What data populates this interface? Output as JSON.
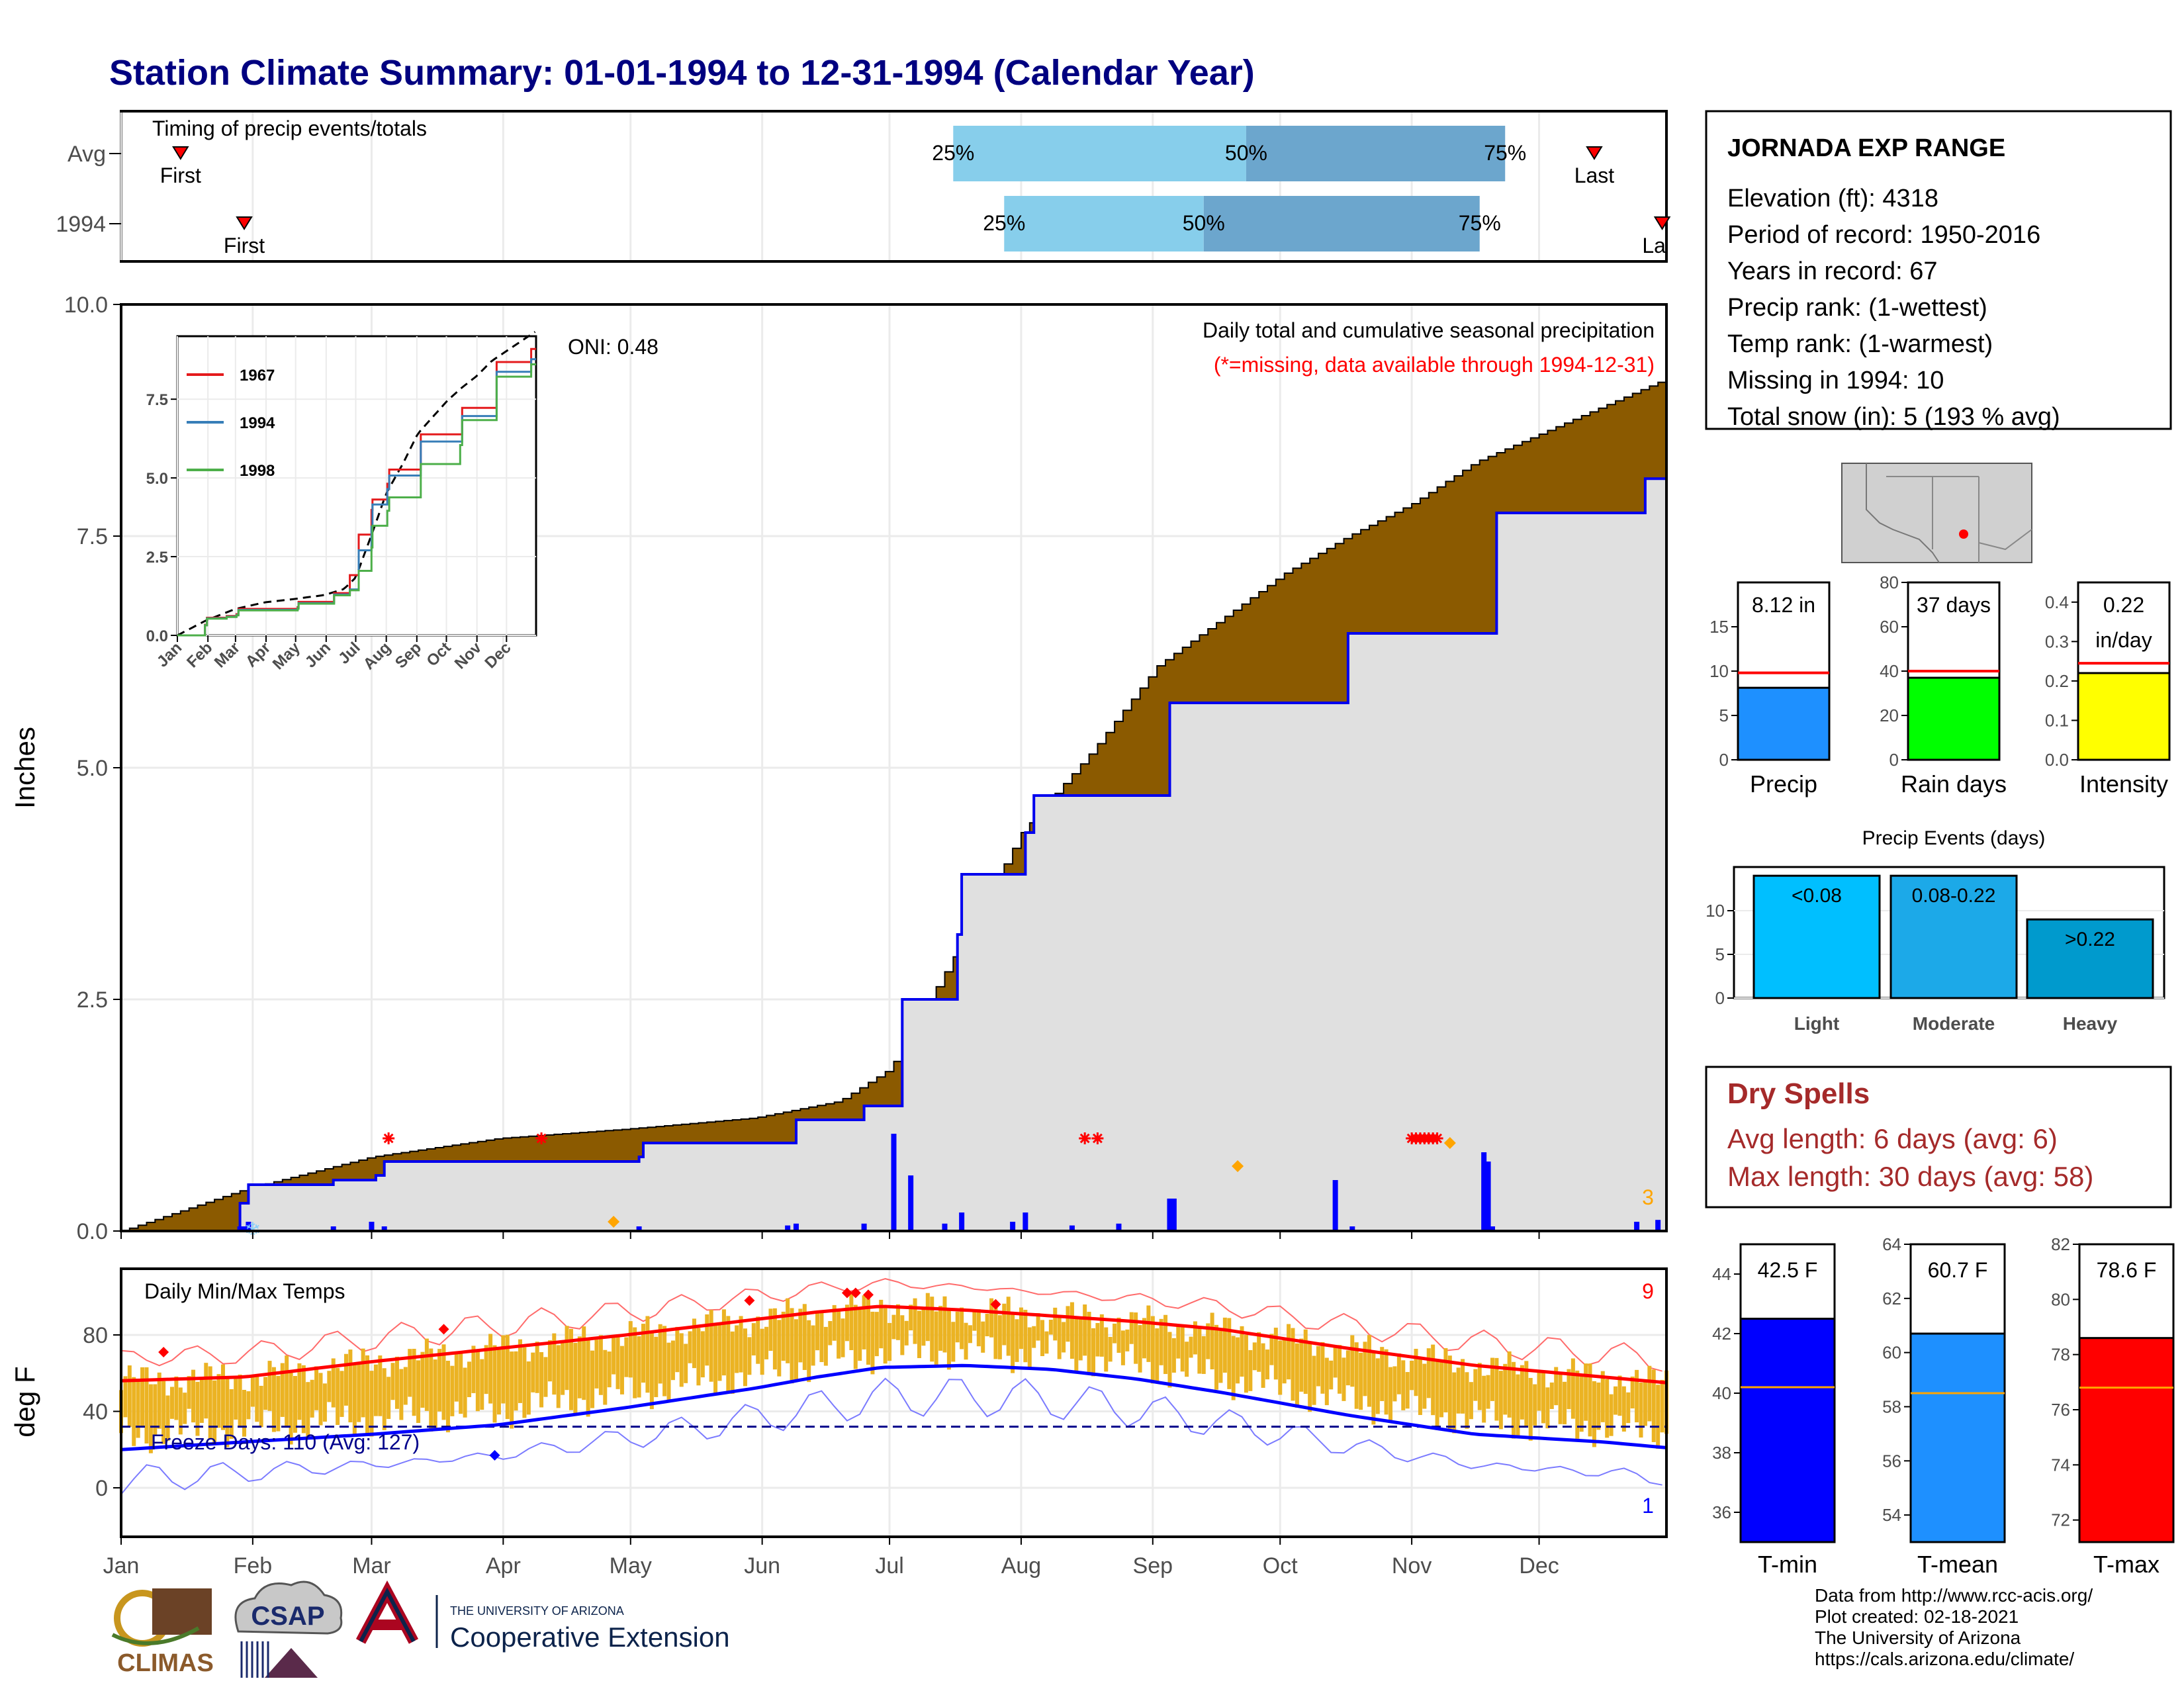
{
  "title": "Station Climate Summary: 01-01-1994 to 12-31-1994 (Calendar Year)",
  "colors": {
    "title": "#000080",
    "accum_fill": "#8B5A00",
    "current_fill": "#E0E0E0",
    "current_line": "#0000EE",
    "temp_bar": "#EBB323",
    "tmax_line": "#FF0000",
    "tmin_line": "#0000FF",
    "dry_spell": "#A52A2A",
    "tercile_light": "#87CEEB",
    "tercile_dark": "#6CA6CD"
  },
  "timing": {
    "label": "Timing of precip events/totals",
    "rows": [
      "Avg",
      "1994"
    ],
    "avg": {
      "first": "First",
      "last": "Last",
      "p25": "25%",
      "p50": "50%",
      "p75": "75%"
    },
    "y1994": {
      "first": "First",
      "last": "Last",
      "p25": "25%",
      "p50": "50%",
      "p75": "75%"
    }
  },
  "precip_panel": {
    "ylabel": "Inches",
    "yticks": [
      "0.0",
      "2.5",
      "5.0",
      "7.5",
      "10.0"
    ],
    "label1": "Daily total and cumulative seasonal precipitation",
    "label2": "(*=missing, data available through 1994-12-31)",
    "oni": "ONI: 0.48",
    "corner_count": "3"
  },
  "inset": {
    "legend": [
      "1967",
      "1994",
      "1998"
    ],
    "yticks": [
      "0.0",
      "2.5",
      "5.0",
      "7.5"
    ],
    "months": [
      "Jan",
      "Feb",
      "Mar",
      "Apr",
      "May",
      "Jun",
      "Jul",
      "Aug",
      "Sep",
      "Oct",
      "Nov",
      "Dec"
    ]
  },
  "temp_panel": {
    "ylabel": "deg F",
    "title": "Daily Min/Max Temps",
    "freeze": "Freeze Days: 110 (Avg: 127)",
    "yticks": [
      "0",
      "40",
      "80"
    ],
    "count_max": "9",
    "count_min": "1"
  },
  "months": [
    "Jan",
    "Feb",
    "Mar",
    "Apr",
    "May",
    "Jun",
    "Jul",
    "Aug",
    "Sep",
    "Oct",
    "Nov",
    "Dec"
  ],
  "station": {
    "name": "JORNADA EXP RANGE",
    "lines": [
      "Elevation (ft): 4318",
      "Period of record: 1950-2016",
      "Years in record: 67",
      "Precip rank:  (1-wettest)",
      "Temp rank:  (1-warmest)",
      "Missing in 1994: 10",
      "Total snow (in): 5 (193 % avg)"
    ]
  },
  "precip_bars": [
    {
      "label": "Precip",
      "value_text": "8.12 in",
      "value": 8.12,
      "avg": 9.8,
      "color": "#1E90FF",
      "ymax": 20,
      "ticks": [
        "0",
        "5",
        "10",
        "15"
      ]
    },
    {
      "label": "Rain days",
      "value_text": "37 days",
      "value": 37,
      "avg": 40,
      "color": "#00FF00",
      "ymax": 80,
      "ticks": [
        "0",
        "20",
        "40",
        "60",
        "80"
      ]
    },
    {
      "label": "Intensity",
      "value_text": "0.22",
      "value_text2": "in/day",
      "value": 0.22,
      "avg": 0.245,
      "color": "#FFFF00",
      "ymax": 0.45,
      "ticks": [
        "0.0",
        "0.1",
        "0.2",
        "0.3",
        "0.4"
      ]
    }
  ],
  "events": {
    "title": "Precip Events (days)",
    "ticks": [
      "0",
      "5",
      "10"
    ],
    "bars": [
      {
        "cat": "Light",
        "label": "<0.08",
        "value": 14,
        "color": "#00BFFF"
      },
      {
        "cat": "Moderate",
        "label": "0.08-0.22",
        "value": 14,
        "color": "#1CA9E8"
      },
      {
        "cat": "Heavy",
        "label": ">0.22",
        "value": 9,
        "color": "#009ACD"
      }
    ]
  },
  "dry_spells": {
    "title": "Dry Spells",
    "avg": "Avg length: 6 days (avg: 6)",
    "max": "Max length: 30 days (avg: 58)"
  },
  "temp_bars": [
    {
      "label": "T-min",
      "value_text": "42.5 F",
      "value": 42.5,
      "avg": 40.2,
      "color": "#0000FF",
      "ymin": 35,
      "ymax": 45,
      "ticks": [
        36,
        38,
        40,
        42,
        44
      ]
    },
    {
      "label": "T-mean",
      "value_text": "60.7 F",
      "value": 60.7,
      "avg": 58.5,
      "color": "#1E90FF",
      "ymin": 53,
      "ymax": 64,
      "ticks": [
        54,
        56,
        58,
        60,
        62,
        64
      ]
    },
    {
      "label": "T-max",
      "value_text": "78.6 F",
      "value": 78.6,
      "avg": 76.8,
      "color": "#FF0000",
      "ymin": 71.2,
      "ymax": 82,
      "ticks": [
        72,
        74,
        76,
        78,
        80,
        82
      ]
    }
  ],
  "footer": {
    "lines": [
      "Data from http://www.rcc-acis.org/",
      "Plot created: 02-18-2021",
      "The University of Arizona",
      "https://cals.arizona.edu/climate/"
    ],
    "climas": "CLIMAS",
    "csap": "CSAP",
    "ua_small": "THE UNIVERSITY OF ARIZONA",
    "ua_big": "Cooperative Extension"
  },
  "chart_data": {
    "type": "area",
    "title": "Daily total and cumulative seasonal precipitation",
    "xlabel": "",
    "ylabel": "Inches",
    "ylim": [
      0,
      10
    ],
    "x_unit": "day of year 1994",
    "series": [
      {
        "name": "average cumulative",
        "x": [
          1,
          30,
          60,
          90,
          120,
          150,
          170,
          182,
          200,
          213,
          230,
          245,
          260,
          275,
          290,
          305,
          320,
          335,
          350,
          365
        ],
        "values": [
          0.0,
          0.45,
          0.8,
          1.0,
          1.1,
          1.22,
          1.4,
          1.75,
          3.2,
          4.3,
          5.2,
          6.1,
          6.6,
          7.1,
          7.5,
          7.85,
          8.3,
          8.6,
          8.9,
          9.2
        ]
      },
      {
        "name": "1994 cumulative",
        "x": [
          1,
          29,
          31,
          51,
          61,
          63,
          123,
          124,
          160,
          176,
          183,
          185,
          188,
          198,
          199,
          211,
          214,
          216,
          245,
          248,
          288,
          290,
          322,
          325,
          359,
          360,
          365
        ],
        "values": [
          0.0,
          0.3,
          0.5,
          0.55,
          0.6,
          0.75,
          0.8,
          0.95,
          1.2,
          1.35,
          1.35,
          2.5,
          2.5,
          3.2,
          3.85,
          3.85,
          4.3,
          4.7,
          4.7,
          5.7,
          5.7,
          6.45,
          6.45,
          7.75,
          7.75,
          8.12,
          8.12
        ]
      },
      {
        "name": "1994 daily",
        "x": [
          29,
          30,
          31,
          51,
          60,
          63,
          123,
          158,
          160,
          176,
          183,
          187,
          195,
          199,
          211,
          214,
          225,
          236,
          248,
          249,
          287,
          291,
          322,
          323,
          324,
          358,
          363
        ],
        "values": [
          0.05,
          0.05,
          0.1,
          0.05,
          0.1,
          0.05,
          0.05,
          0.06,
          0.08,
          0.08,
          1.05,
          0.6,
          0.08,
          0.2,
          0.1,
          0.2,
          0.06,
          0.08,
          0.35,
          0.35,
          0.55,
          0.05,
          0.85,
          0.75,
          0.05,
          0.1,
          0.12
        ]
      },
      {
        "name": "1994 Tmax (F)",
        "x": [
          1,
          30,
          60,
          90,
          120,
          150,
          165,
          180,
          200,
          220,
          240,
          260,
          290,
          320,
          350,
          365
        ],
        "values": [
          56,
          58,
          66,
          73,
          80,
          88,
          92,
          95,
          93,
          90,
          87,
          83,
          73,
          64,
          58,
          55
        ]
      },
      {
        "name": "1994 Tmin (F)",
        "x": [
          1,
          30,
          60,
          90,
          120,
          150,
          165,
          180,
          200,
          220,
          240,
          260,
          290,
          320,
          350,
          365
        ],
        "values": [
          20,
          24,
          28,
          33,
          42,
          52,
          58,
          63,
          64,
          62,
          57,
          50,
          38,
          28,
          24,
          21
        ]
      }
    ]
  }
}
